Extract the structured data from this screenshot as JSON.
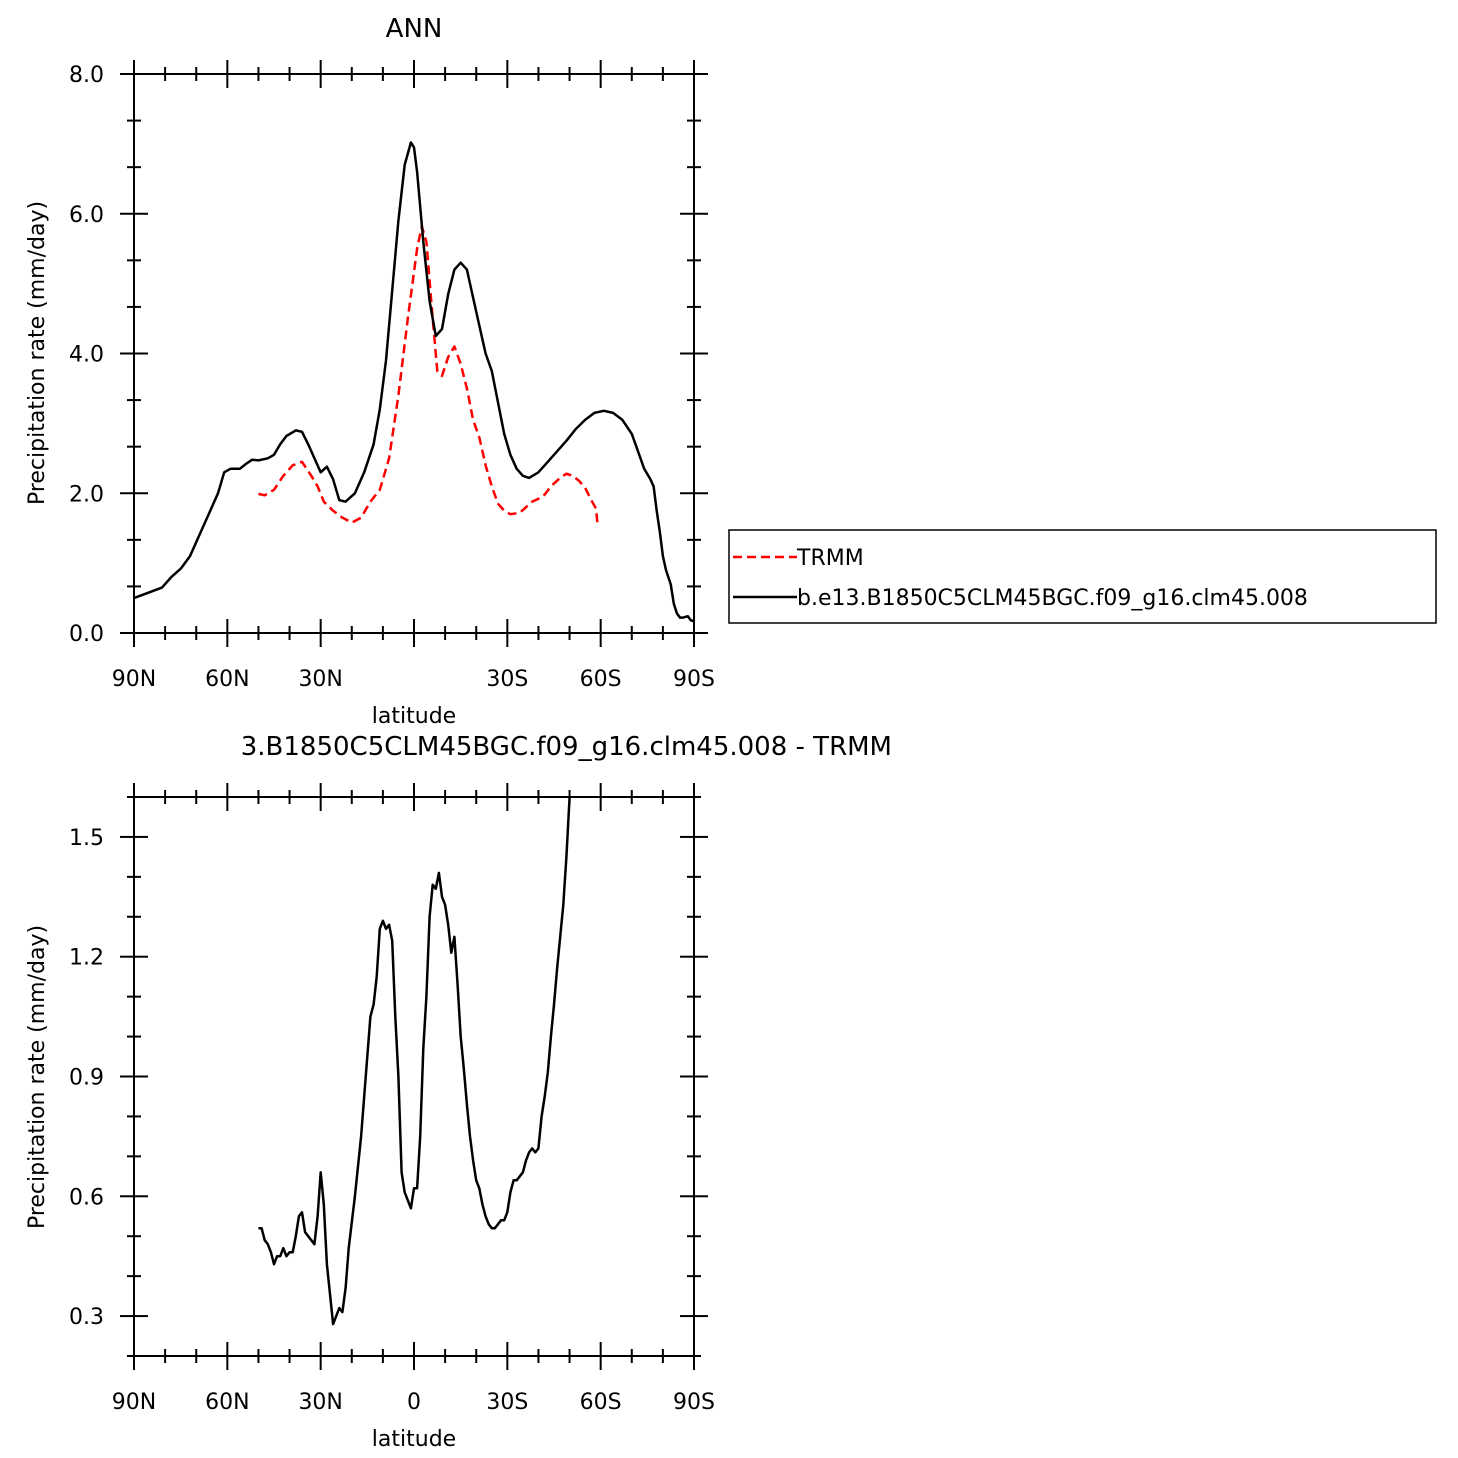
{
  "chart_data": [
    {
      "type": "line",
      "title": "ANN",
      "xlabel": "latitude",
      "ylabel": "Precipitation rate (mm/day)",
      "xlim": [
        90,
        -90
      ],
      "ylim": [
        0,
        8
      ],
      "x_ticks": [
        {
          "value": 90,
          "label": "90N"
        },
        {
          "value": 60,
          "label": "60N"
        },
        {
          "value": 30,
          "label": "30N"
        },
        {
          "value": -30,
          "label": "30S"
        },
        {
          "value": -60,
          "label": "60S"
        },
        {
          "value": -90,
          "label": "90S"
        }
      ],
      "y_ticks": [
        {
          "value": 0,
          "label": "0.0"
        },
        {
          "value": 2,
          "label": "2.0"
        },
        {
          "value": 4,
          "label": "4.0"
        },
        {
          "value": 6,
          "label": "6.0"
        },
        {
          "value": 8,
          "label": "8.0"
        }
      ],
      "legend_position": "right",
      "series": [
        {
          "name": "TRMM",
          "color": "#ff0000",
          "dash": "dashed",
          "points": [
            [
              50,
              1.99
            ],
            [
              48,
              1.97
            ],
            [
              45,
              2.05
            ],
            [
              42,
              2.25
            ],
            [
              39,
              2.4
            ],
            [
              36,
              2.45
            ],
            [
              33,
              2.25
            ],
            [
              31,
              2.1
            ],
            [
              29,
              1.88
            ],
            [
              26,
              1.75
            ],
            [
              23,
              1.65
            ],
            [
              20,
              1.58
            ],
            [
              17,
              1.65
            ],
            [
              14,
              1.88
            ],
            [
              11,
              2.05
            ],
            [
              8,
              2.5
            ],
            [
              5,
              3.4
            ],
            [
              2,
              4.5
            ],
            [
              -1,
              5.5
            ],
            [
              -2.5,
              5.82
            ],
            [
              -4,
              5.6
            ],
            [
              -6,
              4.5
            ],
            [
              -7.5,
              3.75
            ],
            [
              -9,
              3.68
            ],
            [
              -11,
              3.95
            ],
            [
              -13,
              4.1
            ],
            [
              -15,
              3.85
            ],
            [
              -17,
              3.5
            ],
            [
              -19,
              3.05
            ],
            [
              -21,
              2.8
            ],
            [
              -23,
              2.4
            ],
            [
              -25,
              2.1
            ],
            [
              -27,
              1.85
            ],
            [
              -29,
              1.75
            ],
            [
              -31,
              1.7
            ],
            [
              -34,
              1.72
            ],
            [
              -36,
              1.8
            ],
            [
              -38,
              1.88
            ],
            [
              -40,
              1.92
            ],
            [
              -42,
              1.98
            ],
            [
              -44,
              2.1
            ],
            [
              -47,
              2.22
            ],
            [
              -49,
              2.28
            ],
            [
              -51,
              2.25
            ],
            [
              -53,
              2.18
            ],
            [
              -55,
              2.08
            ],
            [
              -57,
              1.9
            ],
            [
              -58.5,
              1.78
            ],
            [
              -59,
              1.55
            ]
          ]
        },
        {
          "name": "b.e13.B1850C5CLM45BGC.f09_g16.clm45.008",
          "color": "#000000",
          "dash": "solid",
          "points": [
            [
              90,
              0.5
            ],
            [
              87,
              0.55
            ],
            [
              84,
              0.6
            ],
            [
              81,
              0.65
            ],
            [
              78,
              0.8
            ],
            [
              75,
              0.92
            ],
            [
              72,
              1.1
            ],
            [
              69,
              1.4
            ],
            [
              66,
              1.7
            ],
            [
              63,
              2.0
            ],
            [
              61,
              2.3
            ],
            [
              59,
              2.35
            ],
            [
              56,
              2.35
            ],
            [
              54,
              2.42
            ],
            [
              52,
              2.48
            ],
            [
              50,
              2.47
            ],
            [
              47,
              2.5
            ],
            [
              45,
              2.55
            ],
            [
              43,
              2.7
            ],
            [
              41,
              2.82
            ],
            [
              38,
              2.9
            ],
            [
              36,
              2.88
            ],
            [
              34,
              2.7
            ],
            [
              32,
              2.5
            ],
            [
              30,
              2.3
            ],
            [
              28,
              2.38
            ],
            [
              26,
              2.2
            ],
            [
              24,
              1.9
            ],
            [
              22,
              1.88
            ],
            [
              19,
              2.0
            ],
            [
              16,
              2.3
            ],
            [
              13,
              2.7
            ],
            [
              11,
              3.2
            ],
            [
              9,
              3.9
            ],
            [
              7,
              4.9
            ],
            [
              5,
              5.9
            ],
            [
              3,
              6.7
            ],
            [
              1,
              7.02
            ],
            [
              0,
              6.95
            ],
            [
              -1,
              6.6
            ],
            [
              -3,
              5.6
            ],
            [
              -5,
              4.75
            ],
            [
              -7,
              4.25
            ],
            [
              -9,
              4.35
            ],
            [
              -11,
              4.85
            ],
            [
              -13,
              5.2
            ],
            [
              -15,
              5.3
            ],
            [
              -17,
              5.2
            ],
            [
              -19,
              4.8
            ],
            [
              -21,
              4.4
            ],
            [
              -23,
              4.0
            ],
            [
              -25,
              3.75
            ],
            [
              -27,
              3.3
            ],
            [
              -29,
              2.85
            ],
            [
              -31,
              2.55
            ],
            [
              -33,
              2.35
            ],
            [
              -35,
              2.25
            ],
            [
              -37,
              2.22
            ],
            [
              -40,
              2.3
            ],
            [
              -43,
              2.45
            ],
            [
              -46,
              2.6
            ],
            [
              -49,
              2.75
            ],
            [
              -52,
              2.92
            ],
            [
              -55,
              3.05
            ],
            [
              -58,
              3.15
            ],
            [
              -61,
              3.18
            ],
            [
              -64,
              3.15
            ],
            [
              -67,
              3.05
            ],
            [
              -70,
              2.85
            ],
            [
              -72,
              2.6
            ],
            [
              -74,
              2.35
            ],
            [
              -76,
              2.2
            ],
            [
              -77,
              2.1
            ],
            [
              -78,
              1.75
            ],
            [
              -79,
              1.45
            ],
            [
              -80,
              1.1
            ],
            [
              -81,
              0.9
            ],
            [
              -82.5,
              0.7
            ],
            [
              -83.5,
              0.42
            ],
            [
              -84.5,
              0.28
            ],
            [
              -85.5,
              0.22
            ],
            [
              -86.5,
              0.22
            ],
            [
              -88,
              0.24
            ],
            [
              -89,
              0.18
            ],
            [
              -90,
              0.17
            ]
          ]
        }
      ]
    },
    {
      "type": "line",
      "title": "3.B1850C5CLM45BGC.f09_g16.clm45.008 - TRMM",
      "xlabel": "latitude",
      "ylabel": "Precipitation rate (mm/day)",
      "xlim": [
        90,
        -90
      ],
      "ylim": [
        0.2,
        1.6
      ],
      "x_ticks": [
        {
          "value": 90,
          "label": "90N"
        },
        {
          "value": 60,
          "label": "60N"
        },
        {
          "value": 30,
          "label": "30N"
        },
        {
          "value": 0,
          "label": "0"
        },
        {
          "value": -30,
          "label": "30S"
        },
        {
          "value": -60,
          "label": "60S"
        },
        {
          "value": -90,
          "label": "90S"
        }
      ],
      "y_ticks": [
        {
          "value": 0.3,
          "label": "0.3"
        },
        {
          "value": 0.6,
          "label": "0.6"
        },
        {
          "value": 0.9,
          "label": "0.9"
        },
        {
          "value": 1.2,
          "label": "1.2"
        },
        {
          "value": 1.5,
          "label": "1.5"
        }
      ],
      "series": [
        {
          "color": "#000000",
          "dash": "solid",
          "points": [
            [
              50,
              0.52
            ],
            [
              49,
              0.52
            ],
            [
              48,
              0.49
            ],
            [
              47,
              0.48
            ],
            [
              46,
              0.46
            ],
            [
              45,
              0.43
            ],
            [
              44,
              0.45
            ],
            [
              43,
              0.45
            ],
            [
              42,
              0.47
            ],
            [
              41,
              0.45
            ],
            [
              40,
              0.46
            ],
            [
              39,
              0.46
            ],
            [
              38,
              0.5
            ],
            [
              37,
              0.55
            ],
            [
              36,
              0.56
            ],
            [
              35,
              0.51
            ],
            [
              34,
              0.5
            ],
            [
              33,
              0.49
            ],
            [
              32,
              0.48
            ],
            [
              31,
              0.55
            ],
            [
              30,
              0.66
            ],
            [
              29,
              0.58
            ],
            [
              28,
              0.43
            ],
            [
              26,
              0.28
            ],
            [
              25,
              0.3
            ],
            [
              24,
              0.32
            ],
            [
              23,
              0.31
            ],
            [
              22,
              0.37
            ],
            [
              21,
              0.47
            ],
            [
              19,
              0.6
            ],
            [
              17,
              0.75
            ],
            [
              15,
              0.95
            ],
            [
              14,
              1.05
            ],
            [
              13,
              1.08
            ],
            [
              12,
              1.15
            ],
            [
              11,
              1.27
            ],
            [
              10,
              1.29
            ],
            [
              9,
              1.27
            ],
            [
              8,
              1.28
            ],
            [
              7,
              1.24
            ],
            [
              6,
              1.05
            ],
            [
              5,
              0.9
            ],
            [
              4,
              0.66
            ],
            [
              3,
              0.61
            ],
            [
              2,
              0.59
            ],
            [
              1,
              0.57
            ],
            [
              0,
              0.62
            ],
            [
              -1,
              0.62
            ],
            [
              -2,
              0.75
            ],
            [
              -3,
              0.97
            ],
            [
              -4,
              1.1
            ],
            [
              -5,
              1.3
            ],
            [
              -6,
              1.38
            ],
            [
              -7,
              1.37
            ],
            [
              -8,
              1.41
            ],
            [
              -9,
              1.35
            ],
            [
              -10,
              1.33
            ],
            [
              -11,
              1.28
            ],
            [
              -12,
              1.21
            ],
            [
              -13,
              1.25
            ],
            [
              -14,
              1.13
            ],
            [
              -15,
              1.0
            ],
            [
              -16,
              0.92
            ],
            [
              -17,
              0.83
            ],
            [
              -18,
              0.75
            ],
            [
              -19,
              0.69
            ],
            [
              -20,
              0.64
            ],
            [
              -21,
              0.62
            ],
            [
              -22,
              0.58
            ],
            [
              -23,
              0.55
            ],
            [
              -24,
              0.53
            ],
            [
              -25,
              0.52
            ],
            [
              -26,
              0.52
            ],
            [
              -27,
              0.53
            ],
            [
              -28,
              0.54
            ],
            [
              -29,
              0.54
            ],
            [
              -30,
              0.56
            ],
            [
              -31,
              0.61
            ],
            [
              -32,
              0.64
            ],
            [
              -33,
              0.64
            ],
            [
              -34,
              0.65
            ],
            [
              -35,
              0.66
            ],
            [
              -36,
              0.69
            ],
            [
              -37,
              0.71
            ],
            [
              -38,
              0.72
            ],
            [
              -39,
              0.71
            ],
            [
              -40,
              0.72
            ],
            [
              -41,
              0.8
            ],
            [
              -42,
              0.85
            ],
            [
              -43,
              0.91
            ],
            [
              -44,
              1.0
            ],
            [
              -45,
              1.08
            ],
            [
              -46,
              1.17
            ],
            [
              -47,
              1.25
            ],
            [
              -48,
              1.33
            ],
            [
              -49,
              1.45
            ],
            [
              -50,
              1.6
            ]
          ]
        }
      ]
    }
  ]
}
